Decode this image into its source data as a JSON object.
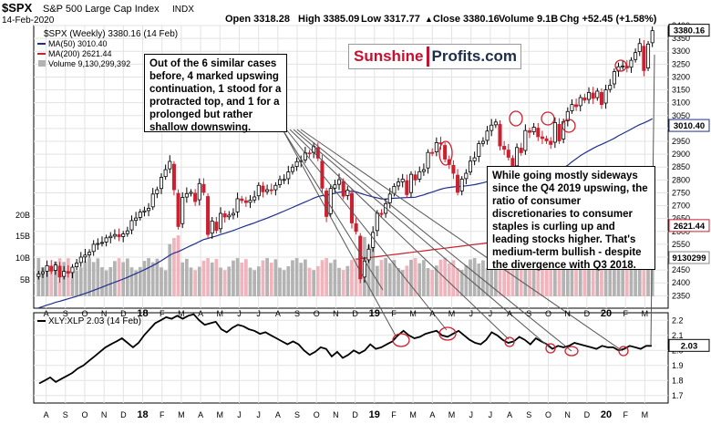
{
  "header": {
    "symbol": "$SPX",
    "name": "S&P 500 Large Cap Index",
    "exchange": "INDX",
    "date": "14-Feb-2020",
    "open": "Open 3318.28",
    "high": "High 3385.09",
    "low": "Low 3317.77",
    "close": "Close 3380.16",
    "volume": "Volume 9.1B",
    "chg": "Chg +52.45 (+1.58%)",
    "chg_marker": "▲"
  },
  "legend": {
    "main": "$SPX (Weekly) 3380.16 (14 Feb)",
    "ma50": "MA(50) 3010.40",
    "ma200": "MA(200) 2621.44",
    "volume": "Volume 9,130,299,392"
  },
  "logo": {
    "part1": "Sunshine",
    "part2": "Profits.com"
  },
  "annotations": {
    "left_box": "Out of the 6 similar cases before, 4 marked upswing continuation, 1 stood for a protracted top, and 1 for a prolonged but rather shallow downswing.",
    "right_box": "While going mostly sideways since the Q4 2019 upswing, the ratio of consumer discretionaries to consumer staples is curling up and leading stocks higher. That's medium-term bullish - despite the divergence with Q3 2018."
  },
  "colors": {
    "up": "#000000",
    "down": "#cc2030",
    "ma50": "#1f2f8f",
    "ma200": "#cc2030",
    "vol_up": "#b3b3b3",
    "vol_down": "#f0b4bc",
    "circle": "#cc2030",
    "tag_dark": "#000000",
    "tag_blue_border": "#1f2f8f",
    "tag_red_border": "#cc2030"
  },
  "chart_data": [
    {
      "type": "candlestick",
      "title": "$SPX S&P 500 Large Cap Index INDX",
      "timeframe": "Weekly",
      "y_ticks": [
        2350,
        2400,
        2450,
        2500,
        2550,
        2600,
        2650,
        2700,
        2750,
        2800,
        2850,
        2900,
        2950,
        3000,
        3050,
        3100,
        3150,
        3200,
        3250,
        3300,
        3350,
        3400
      ],
      "ylim": [
        2330,
        3400
      ],
      "price_tags": {
        "close": "3380.16",
        "ma50": "3010.40",
        "ma200": "2621.44",
        "volume": "9130299"
      },
      "volume_ticks": [
        "5B",
        "10B",
        "15B",
        "20B"
      ],
      "x_ticks": [
        "A",
        "S",
        "O",
        "N",
        "D",
        "18",
        "F",
        "M",
        "A",
        "M",
        "J",
        "J",
        "A",
        "S",
        "O",
        "N",
        "D",
        "19",
        "F",
        "M",
        "A",
        "M",
        "J",
        "J",
        "A",
        "S",
        "O",
        "N",
        "D",
        "20",
        "F",
        "M"
      ],
      "x_ticks_bold": [
        "18",
        "19",
        "20"
      ],
      "series_close": [
        2435,
        2443,
        2467,
        2446,
        2470,
        2423,
        2445,
        2438,
        2461,
        2477,
        2500,
        2508,
        2519,
        2550,
        2553,
        2557,
        2575,
        2581,
        2588,
        2579,
        2590,
        2602,
        2642,
        2652,
        2675,
        2680,
        2690,
        2745,
        2762,
        2810,
        2840,
        2872,
        2762,
        2619,
        2732,
        2747,
        2752,
        2716,
        2786,
        2752,
        2588,
        2640,
        2604,
        2670,
        2656,
        2663,
        2670,
        2727,
        2720,
        2712,
        2721,
        2734,
        2779,
        2754,
        2762,
        2760,
        2779,
        2801,
        2802,
        2831,
        2850,
        2871,
        2875,
        2905,
        2904,
        2930,
        2885,
        2768,
        2658,
        2767,
        2781,
        2801,
        2737,
        2760,
        2633,
        2600,
        2416,
        2485,
        2531,
        2596,
        2671,
        2666,
        2708,
        2745,
        2775,
        2792,
        2803,
        2743,
        2822,
        2800,
        2832,
        2840,
        2907,
        2905,
        2945,
        2940,
        2881,
        2860,
        2826,
        2752,
        2803,
        2826,
        2873,
        2886,
        2941,
        2950,
        2990,
        3013,
        3025,
        2932,
        2919,
        2888,
        2847,
        2926,
        2906,
        2992,
        2985,
        3005,
        2968,
        2961,
        2952,
        2938,
        3023,
        2952,
        3026,
        3066,
        3093,
        3085,
        3120,
        3110,
        3140,
        3117,
        3145,
        3093,
        3150,
        3168,
        3221,
        3240,
        3243,
        3235,
        3265,
        3295,
        3330,
        3225,
        3328,
        3380
      ],
      "markers": "red circles mark prior XLY:XLP local highs and corresponding SPX points"
    },
    {
      "type": "line",
      "title": "XLY:XLP 2.03 (14 Feb)",
      "y_ticks": [
        1.7,
        1.8,
        1.9,
        2.0,
        2.1,
        2.2
      ],
      "ylim": [
        1.65,
        2.25
      ],
      "last_value_tag": "2.03",
      "x_ticks": [
        "A",
        "S",
        "O",
        "N",
        "D",
        "18",
        "F",
        "M",
        "A",
        "M",
        "J",
        "J",
        "A",
        "S",
        "O",
        "N",
        "D",
        "19",
        "F",
        "M",
        "A",
        "M",
        "J",
        "J",
        "A",
        "S",
        "O",
        "N",
        "D",
        "20",
        "F",
        "M"
      ],
      "series": [
        {
          "name": "XLY:XLP",
          "values": [
            1.78,
            1.8,
            1.82,
            1.79,
            1.81,
            1.83,
            1.85,
            1.88,
            1.9,
            1.93,
            1.96,
            1.99,
            2.02,
            2.04,
            2.06,
            2.08,
            2.05,
            2.02,
            2.05,
            2.1,
            2.14,
            2.18,
            2.2,
            2.22,
            2.21,
            2.23,
            2.21,
            2.23,
            2.24,
            2.2,
            2.17,
            2.18,
            2.19,
            2.14,
            2.12,
            2.15,
            2.17,
            2.16,
            2.14,
            2.13,
            2.11,
            2.12,
            2.1,
            2.08,
            2.06,
            2.04,
            2.06,
            2.04,
            2.0,
            1.97,
            1.99,
            2.02,
            2.01,
            1.96,
            1.99,
            1.95,
            1.97,
            2.0,
            1.98,
            2.0,
            2.04,
            2.01,
            2.02,
            2.04,
            2.06,
            2.1,
            2.13,
            2.1,
            2.08,
            2.09,
            2.11,
            2.12,
            2.13,
            2.1,
            2.09,
            2.11,
            2.13,
            2.1,
            2.07,
            2.05,
            2.04,
            2.07,
            2.12,
            2.1,
            2.07,
            2.05,
            2.06,
            2.09,
            2.07,
            2.04,
            2.08,
            2.06,
            2.04,
            2.01,
            2.03,
            2.02,
            2.03,
            2.05,
            2.04,
            2.03,
            2.02,
            2.01,
            2.03,
            2.02,
            2.02,
            2.0,
            2.01,
            2.03,
            2.02,
            2.01,
            2.03,
            2.03
          ]
        }
      ]
    }
  ]
}
